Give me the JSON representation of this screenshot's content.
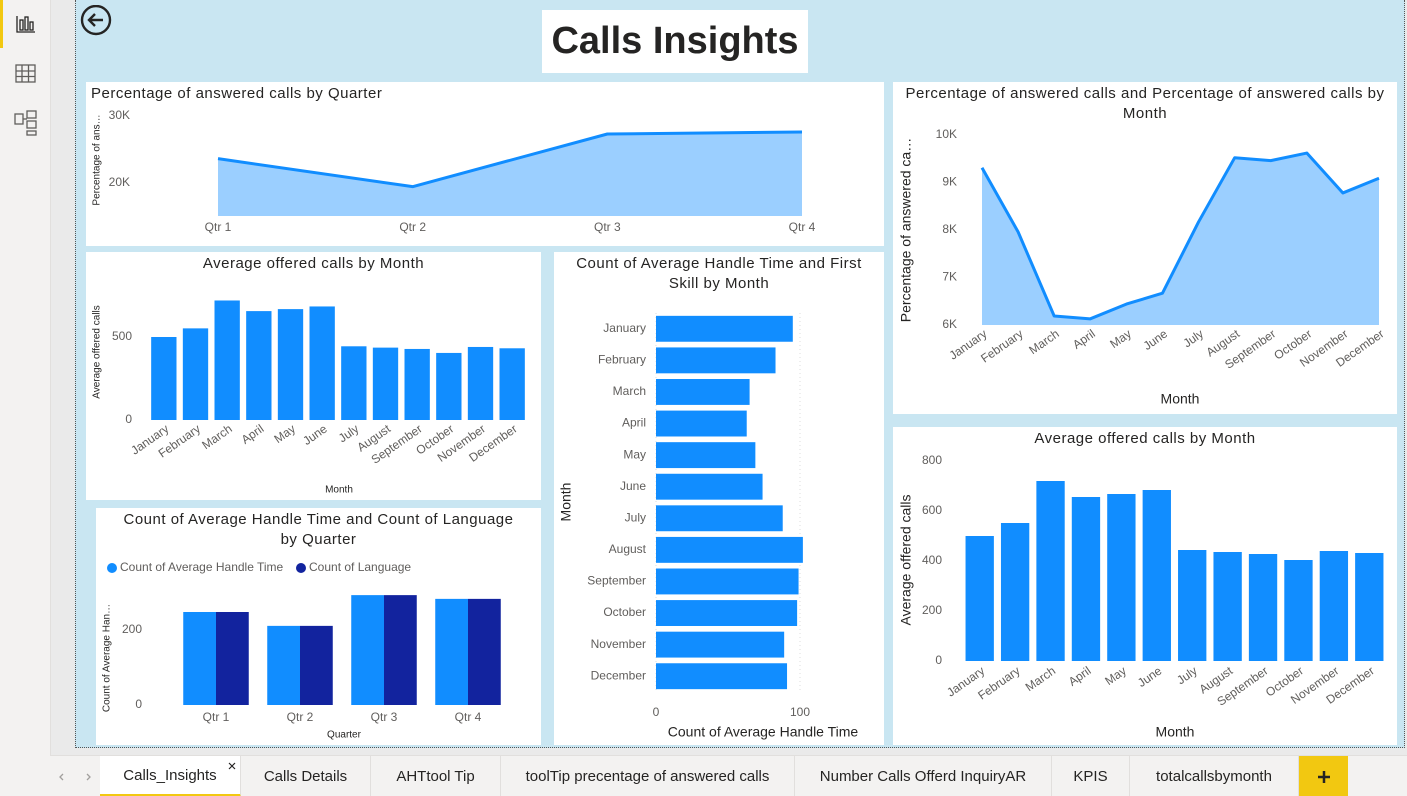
{
  "header": {
    "title": "Calls Insights"
  },
  "chart_data": [
    {
      "type": "area",
      "title": "Percentage of answered calls by Quarter",
      "y_label": "Percentage of ans…",
      "categories": [
        "Qtr 1",
        "Qtr 2",
        "Qtr 3",
        "Qtr 4"
      ],
      "values": [
        23600,
        19400,
        27300,
        27600
      ],
      "color": "#118dff",
      "ylim": [
        15000,
        30000
      ],
      "yticks": [
        {
          "value": 20000,
          "label": "20K"
        },
        {
          "value": 30000,
          "label": "30K"
        }
      ],
      "grid": false
    },
    {
      "type": "bar",
      "title": "Average offered calls by Month",
      "y_label": "Average offered calls",
      "x_label": "Month",
      "categories": [
        "January",
        "February",
        "March",
        "April",
        "May",
        "June",
        "July",
        "August",
        "September",
        "October",
        "November",
        "December"
      ],
      "values": [
        500,
        552,
        720,
        656,
        668,
        684,
        444,
        436,
        428,
        404,
        440,
        432
      ],
      "color": "#118dff",
      "ylim": [
        0,
        750
      ],
      "yticks": [
        0,
        500
      ],
      "grid": false
    },
    {
      "type": "bar",
      "title": "Count of Average Handle Time and Count of Language by Quarter",
      "y_label": "Count of Average Han…",
      "x_label": "Quarter",
      "categories": [
        "Qtr 1",
        "Qtr 2",
        "Qtr 3",
        "Qtr 4"
      ],
      "series": [
        {
          "name": "Count of Average Handle Time",
          "color": "#118dff",
          "values": [
            248,
            211,
            293,
            283
          ]
        },
        {
          "name": "Count of Language",
          "color": "#12239e",
          "values": [
            248,
            211,
            293,
            283
          ]
        }
      ],
      "ylim": [
        0,
        300
      ],
      "yticks": [
        0,
        200
      ],
      "legend": "top-left",
      "grid": false
    },
    {
      "type": "barh",
      "title": "Count of Average Handle Time and First Skill by Month",
      "y_label": "Month",
      "x_label": "Count of Average Handle Time",
      "categories": [
        "January",
        "February",
        "March",
        "April",
        "May",
        "June",
        "July",
        "August",
        "September",
        "October",
        "November",
        "December"
      ],
      "values": [
        95,
        83,
        65,
        63,
        69,
        74,
        88,
        102,
        99,
        98,
        89,
        91
      ],
      "color": "#118dff",
      "xlim": [
        0,
        105
      ],
      "xticks": [
        0,
        100
      ],
      "grid": true
    },
    {
      "type": "area",
      "title": "Percentage of answered calls and Percentage of answered calls by Month",
      "y_label": "Percentage of answered ca…",
      "x_label": "Month",
      "categories": [
        "January",
        "February",
        "March",
        "April",
        "May",
        "June",
        "July",
        "August",
        "September",
        "October",
        "November",
        "December"
      ],
      "values": [
        9310,
        7960,
        6190,
        6130,
        6440,
        6670,
        8170,
        9520,
        9460,
        9620,
        8780,
        9090
      ],
      "color": "#118dff",
      "ylim": [
        6000,
        10000
      ],
      "yticks": [
        {
          "value": 6000,
          "label": "6K"
        },
        {
          "value": 7000,
          "label": "7K"
        },
        {
          "value": 8000,
          "label": "8K"
        },
        {
          "value": 9000,
          "label": "9K"
        },
        {
          "value": 10000,
          "label": "10K"
        }
      ],
      "grid": false
    },
    {
      "type": "bar",
      "title": "Average offered calls by Month",
      "y_label": "Average offered calls",
      "x_label": "Month",
      "categories": [
        "January",
        "February",
        "March",
        "April",
        "May",
        "June",
        "July",
        "August",
        "September",
        "October",
        "November",
        "December"
      ],
      "values": [
        500,
        552,
        720,
        656,
        668,
        684,
        444,
        436,
        428,
        404,
        440,
        432
      ],
      "color": "#118dff",
      "ylim": [
        0,
        820
      ],
      "yticks": [
        0,
        200,
        400,
        600,
        800
      ],
      "grid": false
    }
  ],
  "tabs": [
    "Calls_Insights",
    "Calls Details",
    "AHTtool Tip",
    "toolTip precentage of answered calls",
    "Number Calls Offerd InquiryAR",
    "KPIS",
    "totalcallsbymonth"
  ]
}
